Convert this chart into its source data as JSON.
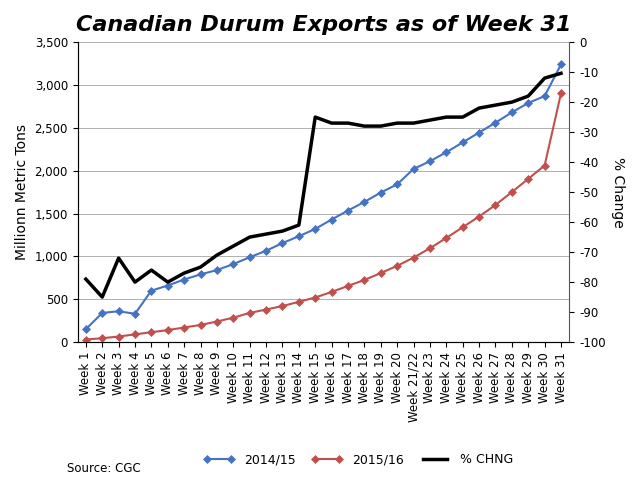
{
  "title": "Canadian Durum Exports as of Week 31",
  "ylabel_left": "Millionn Metric Tons",
  "ylabel_right": "% Change",
  "source": "Source: CGC",
  "weeks": [
    "Week 1",
    "Week 2",
    "Week 3",
    "Week 4",
    "Week 5",
    "Week 6",
    "Week 7",
    "Week 8",
    "Week 9",
    "Week 10",
    "Week 11",
    "Week 12",
    "Week 13",
    "Week 14",
    "Week 15",
    "Week 16",
    "Week 17",
    "Week 18",
    "Week 19",
    "Week 20",
    "Week 21/22",
    "Week 23",
    "Week 24",
    "Week 25",
    "Week 26",
    "Week 27",
    "Week 28",
    "Week 29",
    "Week 30",
    "Week 31"
  ],
  "series_2014": [
    150,
    340,
    360,
    330,
    600,
    660,
    730,
    790,
    840,
    910,
    990,
    1065,
    1155,
    1235,
    1320,
    1430,
    1535,
    1635,
    1745,
    1840,
    2020,
    2110,
    2215,
    2330,
    2445,
    2560,
    2680,
    2790,
    2870,
    3240
  ],
  "series_2015": [
    30,
    45,
    65,
    90,
    115,
    140,
    170,
    200,
    240,
    285,
    340,
    380,
    420,
    470,
    520,
    585,
    655,
    725,
    805,
    890,
    985,
    1095,
    1215,
    1340,
    1465,
    1600,
    1750,
    1905,
    2060,
    2903
  ],
  "pct_change": [
    -79,
    -85,
    -72,
    -80,
    -76,
    -80,
    -77,
    -75,
    -71,
    -68,
    -65,
    -64,
    -63,
    -61,
    -25,
    -27,
    -27,
    -28,
    -28,
    -27,
    -27,
    -26,
    -25,
    -25,
    -22,
    -21,
    -20,
    -18,
    -12,
    -10.4
  ],
  "color_2014": "#4472C4",
  "color_2015": "#C0504D",
  "color_pct": "#000000",
  "ylim_left": [
    0,
    3500
  ],
  "ylim_right": [
    -100,
    0
  ],
  "yticks_left": [
    0,
    500,
    1000,
    1500,
    2000,
    2500,
    3000,
    3500
  ],
  "yticks_right": [
    0,
    -10,
    -20,
    -30,
    -40,
    -50,
    -60,
    -70,
    -80,
    -90,
    -100
  ],
  "title_fontsize": 16,
  "label_fontsize": 10,
  "tick_fontsize": 8.5
}
